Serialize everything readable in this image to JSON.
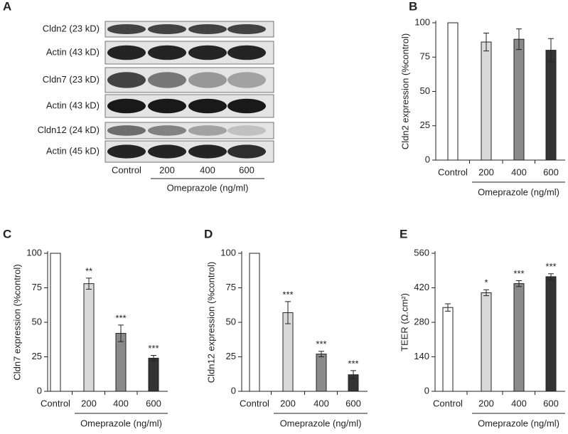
{
  "blot": {
    "panel_label": "A",
    "rows": [
      "Cldn2 (23 kD)",
      "Actin (43 kD)",
      "Cldn7 (23 kD)",
      "Actin (43 kD)",
      "Cldn12 (24 kD)",
      "Actin (45 kD)"
    ],
    "lanes": [
      "Control",
      "200",
      "400",
      "600"
    ],
    "group_label": "Omeprazole (ng/ml)"
  },
  "chart_data": [
    {
      "type": "bar",
      "panel_label": "B",
      "ylabel": "Cldn2 expression (%control)",
      "categories": [
        "Control",
        "200",
        "400",
        "600"
      ],
      "group_label": "Omeprazole (ng/ml)",
      "values": [
        100,
        86,
        88,
        80
      ],
      "errors": [
        0,
        6.5,
        7.5,
        8.5
      ],
      "colors": [
        "#ffffff",
        "#d9d9d9",
        "#8a8a8a",
        "#333333"
      ],
      "ylim": [
        0,
        100
      ],
      "yticks": [
        0,
        25,
        50,
        75,
        100
      ]
    },
    {
      "type": "bar",
      "panel_label": "C",
      "ylabel": "Cldn7 expression (%control)",
      "categories": [
        "Control",
        "200",
        "400",
        "600"
      ],
      "group_label": "Omeprazole (ng/ml)",
      "values": [
        100,
        78,
        42,
        24
      ],
      "errors": [
        0,
        4,
        6,
        2
      ],
      "annotations": [
        null,
        "**",
        "***",
        "***"
      ],
      "colors": [
        "#ffffff",
        "#d9d9d9",
        "#8a8a8a",
        "#333333"
      ],
      "ylim": [
        0,
        100
      ],
      "yticks": [
        0,
        25,
        50,
        75,
        100
      ]
    },
    {
      "type": "bar",
      "panel_label": "D",
      "ylabel": "Cldn12 expression (%control)",
      "categories": [
        "Control",
        "200",
        "400",
        "600"
      ],
      "group_label": "Omeprazole (ng/ml)",
      "values": [
        100,
        57,
        27,
        12
      ],
      "errors": [
        0,
        8,
        2,
        3
      ],
      "annotations": [
        null,
        "***",
        "***",
        "***"
      ],
      "colors": [
        "#ffffff",
        "#d9d9d9",
        "#8a8a8a",
        "#333333"
      ],
      "ylim": [
        0,
        100
      ],
      "yticks": [
        0,
        25,
        50,
        75,
        100
      ]
    },
    {
      "type": "bar",
      "panel_label": "E",
      "ylabel": "TEER (Ω.cm²)",
      "categories": [
        "Control",
        "200",
        "400",
        "600"
      ],
      "group_label": "Omeprazole (ng/ml)",
      "values": [
        340,
        400,
        437,
        465
      ],
      "errors": [
        15,
        12,
        12,
        12
      ],
      "annotations": [
        null,
        "*",
        "***",
        "***"
      ],
      "colors": [
        "#ffffff",
        "#d9d9d9",
        "#8a8a8a",
        "#333333"
      ],
      "ylim": [
        0,
        560
      ],
      "yticks": [
        0,
        140,
        280,
        420,
        560
      ]
    }
  ]
}
